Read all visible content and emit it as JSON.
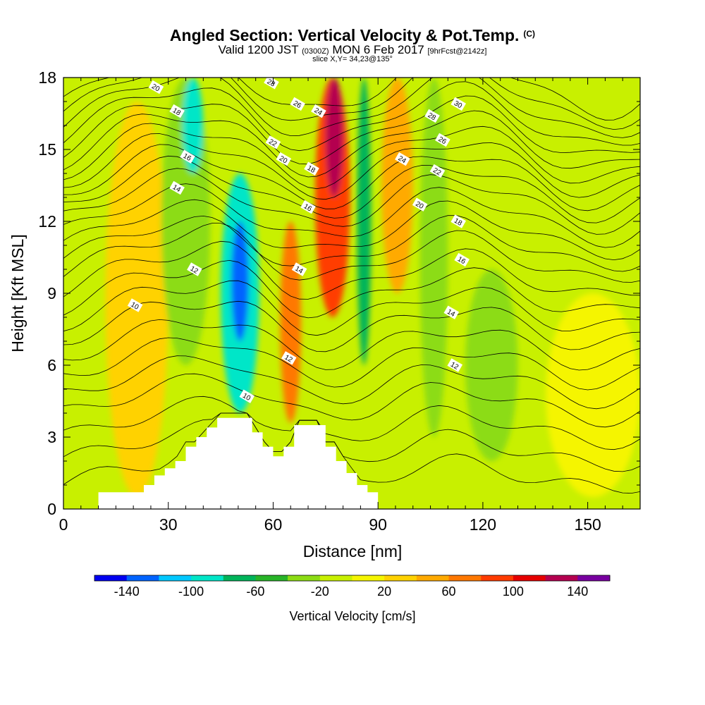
{
  "header": {
    "title": "Angled Section: Vertical Velocity & Pot.Temp.",
    "copyright": "(C)",
    "valid_prefix": "Valid 1200 JST",
    "valid_utc": "(0300Z)",
    "valid_date": "MON 6 Feb 2017",
    "forecast": "[9hrFcst@2142z]",
    "slice": "slice X,Y= 34,23@135°"
  },
  "colors": {
    "background_field": "#c8f000",
    "terrain": "#ffffff",
    "contour": "#000000"
  },
  "chart_data": {
    "type": "heatmap",
    "xlabel": "Distance [nm]",
    "ylabel": "Height [Kft MSL]",
    "xlim": [
      0,
      165
    ],
    "ylim": [
      0,
      18
    ],
    "xticks": [
      0,
      30,
      60,
      90,
      120,
      150
    ],
    "yticks": [
      0,
      3,
      6,
      9,
      12,
      15,
      18
    ],
    "grid": false,
    "colorbar": {
      "label": "Vertical Velocity [cm/s]",
      "levels": [
        -160,
        -140,
        -120,
        -100,
        -80,
        -60,
        -40,
        -20,
        0,
        20,
        40,
        60,
        80,
        100,
        120,
        140,
        160
      ],
      "tick_labels": [
        -140,
        -100,
        -60,
        -20,
        20,
        60,
        100,
        140
      ],
      "colors": [
        "#0000f0",
        "#0064ff",
        "#00c8ff",
        "#00e6c8",
        "#00b45a",
        "#28b428",
        "#8cdc14",
        "#c8f000",
        "#f5f500",
        "#ffd200",
        "#ffaa00",
        "#ff7800",
        "#ff3c00",
        "#e60000",
        "#b40050",
        "#7800a0"
      ]
    },
    "vertical_velocity_features": [
      {
        "x_range": [
          12,
          30
        ],
        "z_range": [
          0.5,
          17
        ],
        "value": 30
      },
      {
        "x_range": [
          28,
          42
        ],
        "z_range": [
          6,
          18
        ],
        "value": -30
      },
      {
        "x_range": [
          34,
          40
        ],
        "z_range": [
          14,
          18
        ],
        "value": -90
      },
      {
        "x_range": [
          45,
          56
        ],
        "z_range": [
          4,
          14
        ],
        "value": -100
      },
      {
        "x_range": [
          48,
          53
        ],
        "z_range": [
          7,
          12
        ],
        "value": -140
      },
      {
        "x_range": [
          62,
          68
        ],
        "z_range": [
          3.6,
          12
        ],
        "value": 70
      },
      {
        "x_range": [
          72,
          82
        ],
        "z_range": [
          8,
          18
        ],
        "value": 90
      },
      {
        "x_range": [
          75,
          80
        ],
        "z_range": [
          13,
          18
        ],
        "value": 120
      },
      {
        "x_range": [
          84,
          88
        ],
        "z_range": [
          6,
          18
        ],
        "value": -70
      },
      {
        "x_range": [
          91,
          100
        ],
        "z_range": [
          9,
          18
        ],
        "value": 50
      },
      {
        "x_range": [
          102,
          110
        ],
        "z_range": [
          3,
          18
        ],
        "value": -30
      },
      {
        "x_range": [
          115,
          130
        ],
        "z_range": [
          2,
          10
        ],
        "value": -40
      },
      {
        "x_range": [
          138,
          165
        ],
        "z_range": [
          0.5,
          9
        ],
        "value": 10
      }
    ],
    "terrain": {
      "x": [
        10,
        20,
        23,
        26,
        29,
        32,
        35,
        38,
        41,
        44,
        51,
        54,
        57,
        60,
        63,
        66,
        72,
        75,
        78,
        81,
        84,
        87,
        90
      ],
      "height_kft": [
        0.7,
        0.7,
        1.0,
        1.4,
        1.7,
        2.0,
        2.6,
        3.0,
        3.4,
        3.8,
        3.8,
        3.2,
        2.6,
        2.2,
        2.6,
        3.5,
        3.5,
        2.6,
        2.0,
        1.5,
        1.0,
        0.7,
        0.3
      ]
    },
    "potential_temperature_labels": [
      {
        "text": "10",
        "x": 20.5,
        "z": 8.5
      },
      {
        "text": "12",
        "x": 37.5,
        "z": 10.0
      },
      {
        "text": "14",
        "x": 32.5,
        "z": 13.4
      },
      {
        "text": "16",
        "x": 35.5,
        "z": 14.7
      },
      {
        "text": "18",
        "x": 32.5,
        "z": 16.6
      },
      {
        "text": "20",
        "x": 26.5,
        "z": 17.6
      },
      {
        "text": "10",
        "x": 52.5,
        "z": 4.7
      },
      {
        "text": "12",
        "x": 64.5,
        "z": 6.3
      },
      {
        "text": "14",
        "x": 67.5,
        "z": 10.0
      },
      {
        "text": "16",
        "x": 70.0,
        "z": 12.6
      },
      {
        "text": "18",
        "x": 71.0,
        "z": 14.2
      },
      {
        "text": "20",
        "x": 63.0,
        "z": 14.6
      },
      {
        "text": "22",
        "x": 60.0,
        "z": 15.3
      },
      {
        "text": "24",
        "x": 73.0,
        "z": 16.6
      },
      {
        "text": "26",
        "x": 67.0,
        "z": 16.9
      },
      {
        "text": "28",
        "x": 59.5,
        "z": 17.8
      },
      {
        "text": "24",
        "x": 97.0,
        "z": 14.6
      },
      {
        "text": "20",
        "x": 102.0,
        "z": 12.7
      },
      {
        "text": "22",
        "x": 107.0,
        "z": 14.1
      },
      {
        "text": "26",
        "x": 108.5,
        "z": 15.4
      },
      {
        "text": "28",
        "x": 105.5,
        "z": 16.4
      },
      {
        "text": "30",
        "x": 113.0,
        "z": 16.9
      },
      {
        "text": "18",
        "x": 113.0,
        "z": 12.0
      },
      {
        "text": "16",
        "x": 114.0,
        "z": 10.4
      },
      {
        "text": "14",
        "x": 111.0,
        "z": 8.2
      },
      {
        "text": "12",
        "x": 112.0,
        "z": 6.0
      }
    ]
  }
}
